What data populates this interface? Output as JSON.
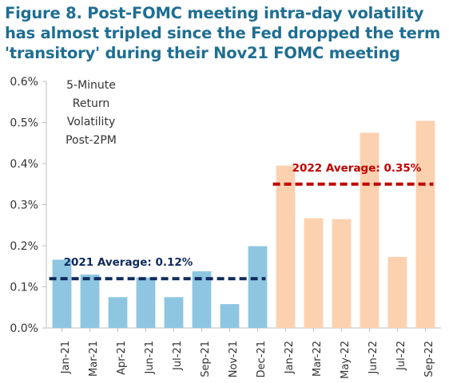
{
  "title": "Figure 8. Post-FOMC meeting intra-day volatility has almost tripled since the Fed dropped the term 'transitory' during their Nov21 FOMC meeting",
  "chart_data": {
    "type": "bar",
    "annotation": [
      "5-Minute",
      "Return",
      "Volatility",
      "Post-2PM"
    ],
    "categories": [
      "Jan-21",
      "Mar-21",
      "Apr-21",
      "Jun-21",
      "Jul-21",
      "Sep-21",
      "Nov-21",
      "Dec-21",
      "Jan-22",
      "Mar-22",
      "May-22",
      "Jun-22",
      "Jul-22",
      "Sep-22"
    ],
    "values": [
      0.00166,
      0.0013,
      0.00075,
      0.00123,
      0.00075,
      0.00138,
      0.00058,
      0.00199,
      0.00395,
      0.00267,
      0.00265,
      0.00475,
      0.00173,
      0.00504
    ],
    "colors": [
      "#8ec6e2",
      "#8ec6e2",
      "#8ec6e2",
      "#8ec6e2",
      "#8ec6e2",
      "#8ec6e2",
      "#8ec6e2",
      "#8ec6e2",
      "#fcd1b0",
      "#fcd1b0",
      "#fcd1b0",
      "#fcd1b0",
      "#fcd1b0",
      "#fcd1b0"
    ],
    "ylim": [
      0,
      0.006
    ],
    "yticks": [
      "0.0%",
      "0.1%",
      "0.2%",
      "0.3%",
      "0.4%",
      "0.5%",
      "0.6%"
    ],
    "grid": false,
    "averages": [
      {
        "label": "2021 Average: 0.12%",
        "value": 0.0012,
        "from_index": 0,
        "to_index": 7,
        "color": "#0f2a5a"
      },
      {
        "label": "2022 Average: 0.35%",
        "value": 0.0035,
        "from_index": 8,
        "to_index": 13,
        "color": "#c00000"
      }
    ]
  }
}
